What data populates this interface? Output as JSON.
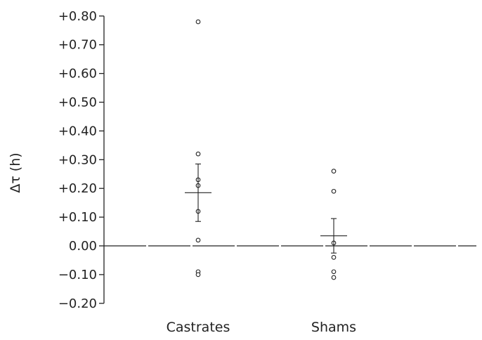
{
  "chart_data": {
    "type": "scatter",
    "title": "",
    "ylabel": "Δτ (h)",
    "xlabel": "",
    "ylim": [
      -0.2,
      0.8
    ],
    "yticks": [
      0.8,
      0.7,
      0.6,
      0.5,
      0.4,
      0.3,
      0.2,
      0.1,
      0.0,
      -0.1,
      -0.2
    ],
    "ytick_labels": [
      "+0.80",
      "+0.70",
      "+0.60",
      "+0.50",
      "+0.40",
      "+0.30",
      "+0.20",
      "+0.10",
      "0.00",
      "−0.10",
      "−0.20"
    ],
    "reference_line": 0.0,
    "categories": [
      "Castrates",
      "Shams"
    ],
    "groups": [
      {
        "name": "Castrates",
        "points": [
          0.78,
          0.32,
          0.23,
          0.21,
          0.12,
          0.02,
          -0.09,
          -0.1
        ],
        "mean": 0.185,
        "sem": 0.1
      },
      {
        "name": "Shams",
        "points": [
          0.26,
          0.19,
          0.01,
          -0.04,
          -0.09,
          -0.11
        ],
        "mean": 0.035,
        "sem": 0.06
      }
    ],
    "grid": false,
    "marker": "open-circle"
  }
}
